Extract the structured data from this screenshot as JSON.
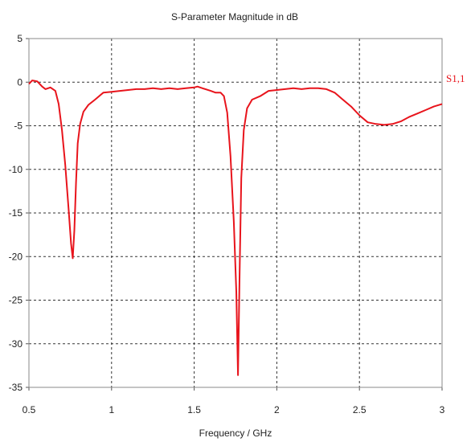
{
  "chart_data": {
    "type": "line",
    "title": "S-Parameter Magnitude in dB",
    "xlabel": "Frequency / GHz",
    "ylabel": "",
    "xlim": [
      0.5,
      3
    ],
    "ylim": [
      -35,
      5
    ],
    "xticks": [
      0.5,
      1,
      1.5,
      2,
      2.5,
      3
    ],
    "xtick_labels": [
      "0.5",
      "1",
      "1.5",
      "2",
      "2.5",
      "3"
    ],
    "yticks": [
      5,
      0,
      -5,
      -10,
      -15,
      -20,
      -25,
      -30,
      -35
    ],
    "ytick_labels": [
      "5",
      "0",
      "-5",
      "-10",
      "-15",
      "-20",
      "-25",
      "-30",
      "-35"
    ],
    "grid": true,
    "legend_position": "top-right",
    "series": [
      {
        "name": "S1,1",
        "color": "#e8141c",
        "x": [
          0.5,
          0.52,
          0.55,
          0.58,
          0.6,
          0.63,
          0.66,
          0.68,
          0.7,
          0.72,
          0.74,
          0.755,
          0.765,
          0.775,
          0.785,
          0.795,
          0.81,
          0.83,
          0.86,
          0.9,
          0.95,
          1.0,
          1.05,
          1.1,
          1.15,
          1.2,
          1.25,
          1.3,
          1.35,
          1.4,
          1.45,
          1.5,
          1.52,
          1.55,
          1.6,
          1.63,
          1.66,
          1.68,
          1.7,
          1.72,
          1.74,
          1.755,
          1.765,
          1.775,
          1.785,
          1.8,
          1.82,
          1.85,
          1.9,
          1.95,
          2.0,
          2.05,
          2.1,
          2.15,
          2.2,
          2.25,
          2.3,
          2.35,
          2.4,
          2.45,
          2.5,
          2.55,
          2.6,
          2.65,
          2.7,
          2.75,
          2.8,
          2.85,
          2.9,
          2.95,
          3.0
        ],
        "y": [
          -0.2,
          0.2,
          0.1,
          -0.5,
          -0.8,
          -0.6,
          -1.0,
          -2.5,
          -5.5,
          -9.5,
          -14.5,
          -18.5,
          -20.2,
          -17.0,
          -11.5,
          -7.0,
          -4.8,
          -3.4,
          -2.6,
          -2.0,
          -1.2,
          -1.1,
          -1.0,
          -0.9,
          -0.8,
          -0.8,
          -0.7,
          -0.8,
          -0.7,
          -0.8,
          -0.7,
          -0.6,
          -0.5,
          -0.7,
          -1.0,
          -1.2,
          -1.2,
          -1.6,
          -3.5,
          -8.5,
          -16.0,
          -24.0,
          -33.6,
          -22.0,
          -11.0,
          -5.5,
          -3.0,
          -2.0,
          -1.6,
          -1.0,
          -0.9,
          -0.8,
          -0.7,
          -0.8,
          -0.7,
          -0.7,
          -0.8,
          -1.2,
          -2.0,
          -2.8,
          -3.8,
          -4.6,
          -4.8,
          -4.9,
          -4.8,
          -4.5,
          -4.0,
          -3.6,
          -3.2,
          -2.8,
          -2.5
        ]
      }
    ]
  }
}
